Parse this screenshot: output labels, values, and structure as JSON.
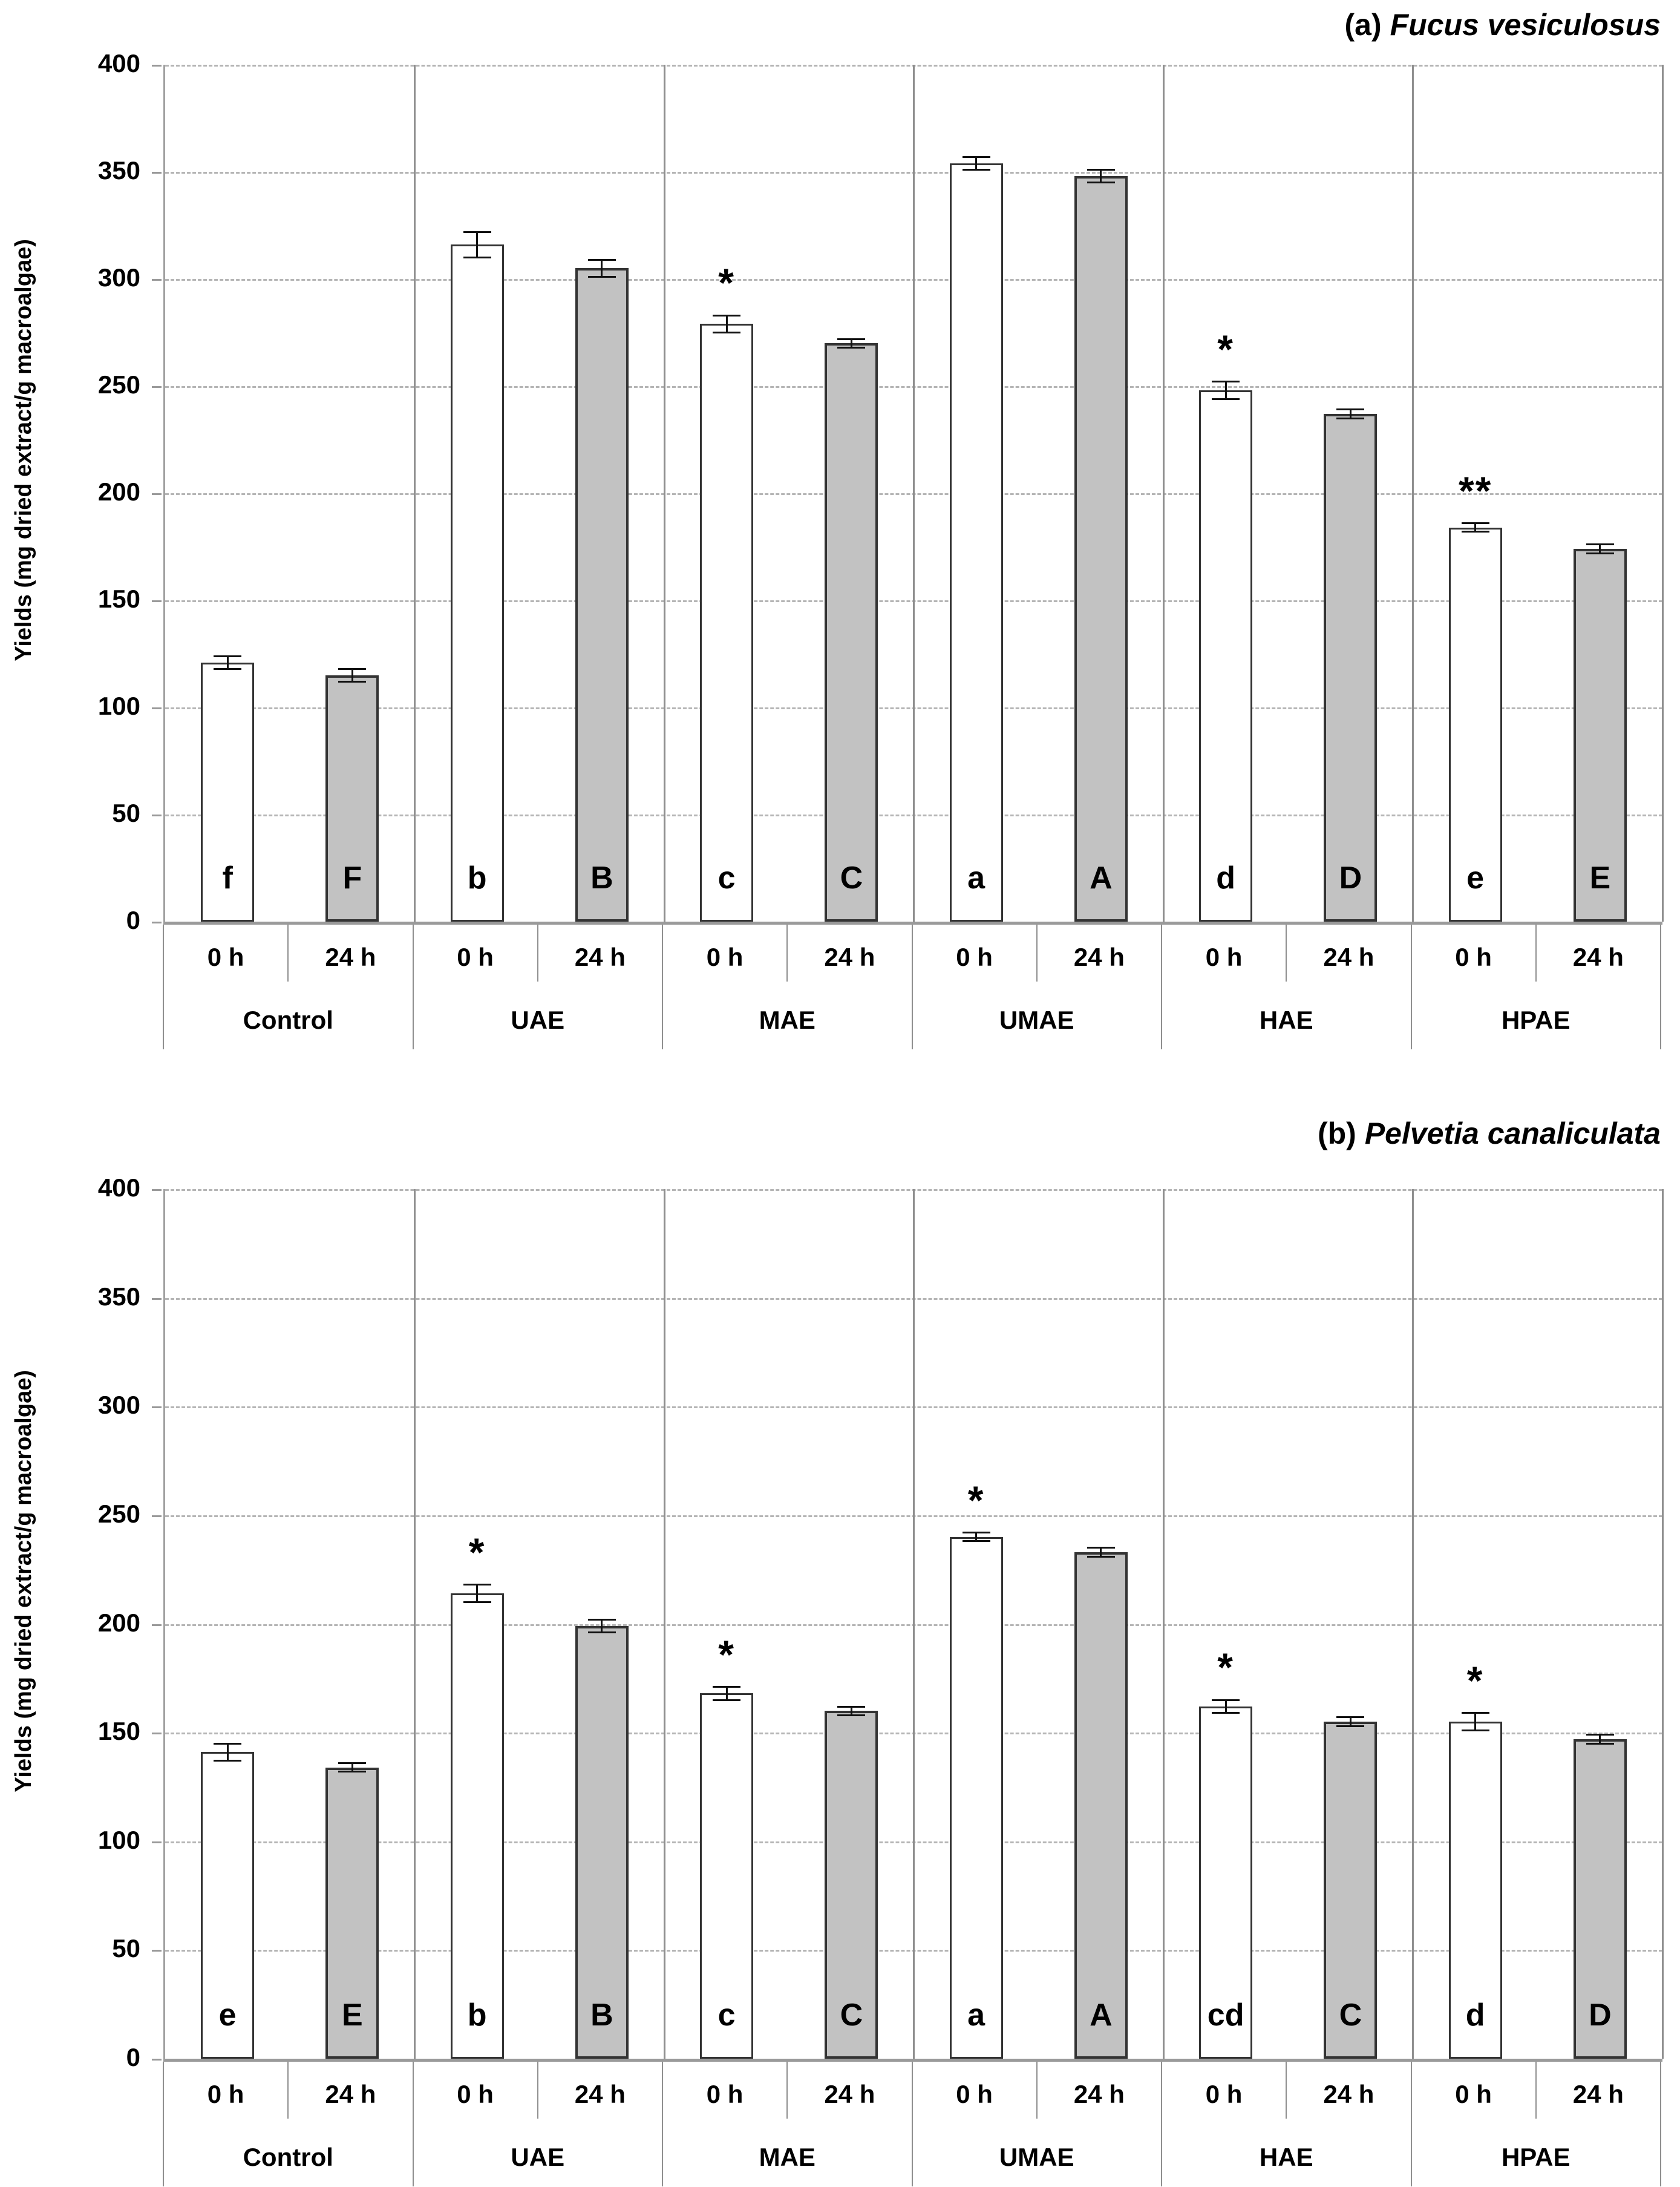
{
  "colors": {
    "bar_0h_fill": "#ffffff",
    "bar_24h_fill": "#c2c2c2",
    "bar_border": "#333333",
    "gridline": "#b5b5b5",
    "axis_line": "#9a9a9a",
    "separator": "#8f8f8f",
    "text": "#000000"
  },
  "chart_data": [
    {
      "type": "bar",
      "panel_label": "(a)",
      "title": "Fucus vesiculosus",
      "ylabel": "Yields (mg dried extract/g macroalgae)",
      "ylim": [
        0,
        400
      ],
      "yticks": [
        0,
        50,
        100,
        150,
        200,
        250,
        300,
        350,
        400
      ],
      "grid": "horizontal-dashed",
      "legend": "none",
      "categories": [
        "Control",
        "UAE",
        "MAE",
        "UMAE",
        "HAE",
        "HPAE"
      ],
      "time_labels": [
        "0 h",
        "24 h"
      ],
      "series": [
        {
          "name": "0 h",
          "values": [
            121,
            316,
            279,
            354,
            248,
            184
          ],
          "errors": [
            3,
            6,
            4,
            3,
            4,
            2
          ],
          "letters": [
            "f",
            "b",
            "c",
            "a",
            "d",
            "e"
          ],
          "stars": [
            "",
            "",
            "*",
            "",
            "*",
            "**"
          ]
        },
        {
          "name": "24 h",
          "values": [
            115,
            305,
            270,
            348,
            237,
            174
          ],
          "errors": [
            3,
            4,
            2,
            3,
            2,
            2
          ],
          "letters": [
            "F",
            "B",
            "C",
            "A",
            "D",
            "E"
          ],
          "stars": [
            "",
            "",
            "",
            "",
            "",
            ""
          ]
        }
      ]
    },
    {
      "type": "bar",
      "panel_label": "(b)",
      "title": "Pelvetia canaliculata",
      "ylabel": "Yields (mg dried extract/g macroalgae)",
      "ylim": [
        0,
        400
      ],
      "yticks": [
        0,
        50,
        100,
        150,
        200,
        250,
        300,
        350,
        400
      ],
      "grid": "horizontal-dashed",
      "legend": "none",
      "categories": [
        "Control",
        "UAE",
        "MAE",
        "UMAE",
        "HAE",
        "HPAE"
      ],
      "time_labels": [
        "0 h",
        "24 h"
      ],
      "series": [
        {
          "name": "0 h",
          "values": [
            141,
            214,
            168,
            240,
            162,
            155
          ],
          "errors": [
            4,
            4,
            3,
            2,
            3,
            4
          ],
          "letters": [
            "e",
            "b",
            "c",
            "a",
            "cd",
            "d"
          ],
          "stars": [
            "",
            "*",
            "*",
            "*",
            "*",
            "*"
          ]
        },
        {
          "name": "24 h",
          "values": [
            134,
            199,
            160,
            233,
            155,
            147
          ],
          "errors": [
            2,
            3,
            2,
            2,
            2,
            2
          ],
          "letters": [
            "E",
            "B",
            "C",
            "A",
            "C",
            "D"
          ],
          "stars": [
            "",
            "",
            "",
            "",
            "",
            ""
          ]
        }
      ]
    }
  ]
}
